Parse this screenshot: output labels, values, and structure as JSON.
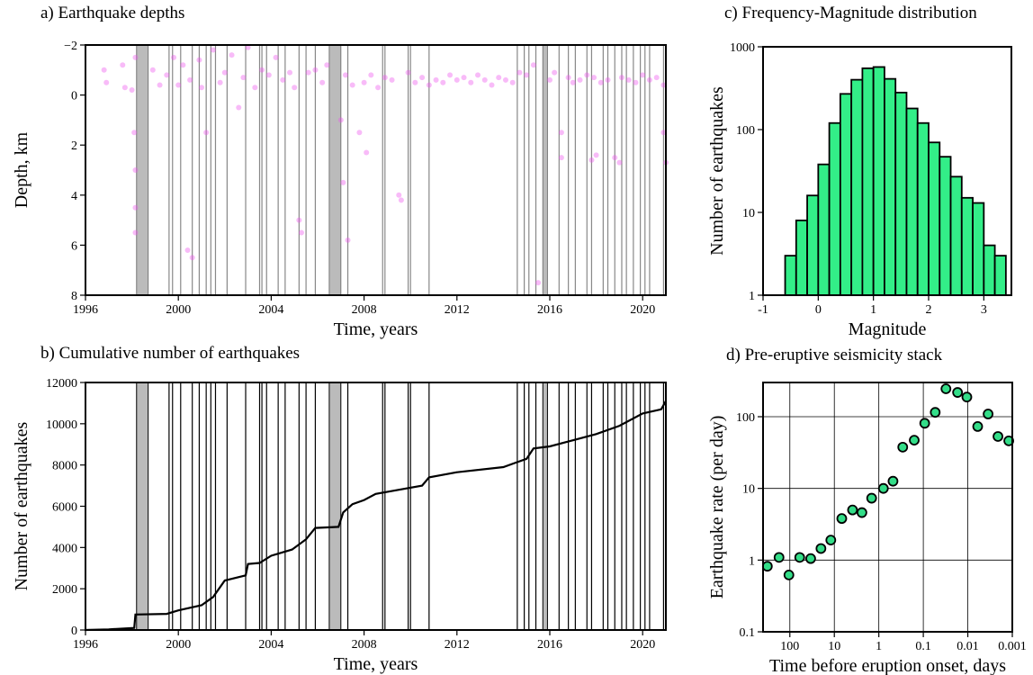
{
  "chart_data": [
    {
      "type": "scatter",
      "title": "a) Earthquake depths",
      "x_label": "Time, years",
      "y_label": "Depth, km",
      "color": "#ee55ee",
      "xlim": [
        1996,
        2021
      ],
      "xticks": [
        1996,
        2000,
        2004,
        2008,
        2012,
        2016,
        2020
      ],
      "ylim": [
        8,
        -2
      ],
      "yticks": [
        {
          "value": -2,
          "label": "−2"
        },
        0,
        2,
        4,
        6,
        8
      ],
      "eruption_periods": [
        [
          1998.2,
          1998.7
        ],
        [
          2006.5,
          2007.0
        ],
        [
          2015.7,
          2015.9
        ]
      ],
      "eruptions": [
        1999.6,
        1999.75,
        2000.1,
        2000.6,
        2000.9,
        2001.2,
        2001.4,
        2001.6,
        2002.1,
        2002.9,
        2003.5,
        2003.6,
        2003.8,
        2004.3,
        2004.6,
        2005.2,
        2005.5,
        2005.9,
        2007.3,
        2008.8,
        2008.9,
        2009.9,
        2010.0,
        2010.8,
        2014.6,
        2014.9,
        2015.1,
        2015.4,
        2016.4,
        2016.8,
        2017.1,
        2017.6,
        2017.8,
        2018.3,
        2018.5,
        2018.8,
        2019.1,
        2019.3,
        2019.6,
        2019.9,
        2020.1,
        2020.3,
        2020.9
      ],
      "x": [
        1996.8,
        1996.9,
        1997.6,
        1997.7,
        1998.0,
        1998.1,
        1998.15,
        1998.15,
        1998.15,
        1998.15,
        1998.9,
        1999.2,
        1999.5,
        1999.8,
        2000.0,
        2000.2,
        2000.4,
        2000.6,
        2000.5,
        2000.9,
        2001.0,
        2001.2,
        2001.5,
        2001.8,
        2002.0,
        2002.3,
        2002.6,
        2002.8,
        2003.0,
        2003.3,
        2003.6,
        2003.9,
        2004.2,
        2004.5,
        2004.8,
        2005.0,
        2005.2,
        2005.3,
        2005.6,
        2005.9,
        2006.2,
        2006.4,
        2007.1,
        2007.2,
        2007.3,
        2007.5,
        2007.8,
        2008.0,
        2008.3,
        2008.6,
        2008.9,
        2009.2,
        2009.5,
        2009.6,
        2009.9,
        2010.2,
        2010.5,
        2010.8,
        2011.1,
        2011.4,
        2011.7,
        2012.0,
        2012.3,
        2012.6,
        2012.9,
        2013.2,
        2013.5,
        2013.8,
        2014.1,
        2014.4,
        2014.7,
        2015.0,
        2015.3,
        2015.5,
        2016.0,
        2016.2,
        2016.5,
        2016.8,
        2017.0,
        2017.3,
        2017.6,
        2017.9,
        2018.2,
        2018.5,
        2018.8,
        2019.1,
        2019.4,
        2019.7,
        2020.0,
        2020.3,
        2020.6,
        2020.9,
        2020.9,
        2021.0,
        2007.0,
        2008.1,
        2016.5,
        2017.8,
        2018.0,
        2019.0
      ],
      "values": [
        -1.0,
        -0.5,
        -1.2,
        -0.3,
        -0.2,
        1.5,
        3.0,
        4.5,
        5.5,
        -1.5,
        -1.0,
        -0.4,
        -0.8,
        -1.5,
        -0.4,
        -1.2,
        6.2,
        6.5,
        -0.6,
        -1.4,
        -0.3,
        1.5,
        -1.8,
        -0.5,
        -0.9,
        -1.6,
        0.5,
        -0.7,
        -1.9,
        -0.3,
        -1.0,
        -0.8,
        -1.5,
        -0.6,
        -0.9,
        -0.3,
        5.0,
        5.5,
        -0.9,
        -1.0,
        -0.5,
        -1.2,
        3.5,
        -0.8,
        5.8,
        -0.4,
        1.5,
        -0.5,
        -0.8,
        -0.3,
        -0.7,
        -0.6,
        4.0,
        4.2,
        -0.9,
        -0.5,
        -0.7,
        -0.4,
        -0.6,
        -0.5,
        -0.8,
        -0.6,
        -0.7,
        -0.5,
        -0.8,
        -0.6,
        -0.4,
        -0.7,
        -0.6,
        -0.5,
        -0.9,
        -0.8,
        -1.2,
        7.5,
        -0.6,
        -0.9,
        1.5,
        -0.7,
        -0.5,
        -0.6,
        -0.8,
        -0.7,
        -0.5,
        -0.6,
        2.5,
        -0.7,
        -0.6,
        -0.5,
        -0.8,
        -0.6,
        -0.7,
        -0.4,
        1.5,
        2.7,
        1.0,
        2.3,
        2.5,
        2.6,
        2.4,
        2.7
      ]
    },
    {
      "type": "line",
      "title": "b) Cumulative number of earthquakes",
      "x_label": "Time, years",
      "y_label": "Number of earthquakes",
      "color": "#000000",
      "xlim": [
        1996,
        2021
      ],
      "xticks": [
        1996,
        2000,
        2004,
        2008,
        2012,
        2016,
        2020
      ],
      "ylim": [
        0,
        12000
      ],
      "yticks": [
        0,
        2000,
        4000,
        6000,
        8000,
        10000,
        12000
      ],
      "eruption_periods": [
        [
          1998.2,
          1998.7
        ],
        [
          2006.5,
          2007.0
        ],
        [
          2015.7,
          2015.9
        ]
      ],
      "eruptions": [
        1999.6,
        1999.75,
        2000.1,
        2000.6,
        2000.9,
        2001.2,
        2001.4,
        2001.6,
        2002.1,
        2002.9,
        2003.5,
        2003.6,
        2003.8,
        2004.3,
        2004.6,
        2005.2,
        2005.5,
        2005.9,
        2007.3,
        2008.8,
        2008.9,
        2009.9,
        2010.0,
        2010.8,
        2014.6,
        2014.9,
        2015.1,
        2015.4,
        2016.4,
        2016.8,
        2017.1,
        2017.6,
        2017.8,
        2018.3,
        2018.5,
        2018.8,
        2019.1,
        2019.3,
        2019.6,
        2019.9,
        2020.1,
        2020.3,
        2020.9
      ],
      "x": [
        1996.0,
        1997.0,
        1998.1,
        1998.15,
        1999.5,
        2000.0,
        2001.0,
        2001.5,
        2002.0,
        2002.9,
        2003.0,
        2003.5,
        2004.0,
        2004.9,
        2005.5,
        2005.9,
        2006.9,
        2007.1,
        2007.5,
        2008.0,
        2008.5,
        2009.5,
        2010.5,
        2010.8,
        2012.0,
        2014.0,
        2014.5,
        2015.0,
        2015.3,
        2016.0,
        2017.0,
        2018.0,
        2019.0,
        2020.0,
        2020.8,
        2021.0
      ],
      "values": [
        0,
        30,
        100,
        750,
        780,
        950,
        1200,
        1600,
        2400,
        2650,
        3200,
        3250,
        3600,
        3900,
        4400,
        4950,
        5000,
        5700,
        6100,
        6300,
        6600,
        6800,
        7000,
        7400,
        7650,
        7900,
        8100,
        8300,
        8800,
        8900,
        9200,
        9500,
        9900,
        10500,
        10700,
        11100
      ]
    },
    {
      "type": "histogram",
      "title": "c) Frequency-Magnitude distribution",
      "x_label": "Magnitude",
      "y_label": "Number of earthquakes",
      "color": "#33ee88",
      "xlim": [
        -1,
        3.5
      ],
      "xticks": [
        -1,
        0,
        1,
        2,
        3
      ],
      "ylim": [
        1,
        1000
      ],
      "yticks": [
        1,
        10,
        100,
        1000
      ],
      "log_y": true,
      "bins": [
        -0.6,
        -0.4,
        -0.2,
        0,
        0.2,
        0.4,
        0.6,
        0.8,
        1.0,
        1.2,
        1.4,
        1.6,
        1.8,
        2.0,
        2.2,
        2.4,
        2.6,
        2.8,
        3.0,
        3.2,
        3.4
      ],
      "values": [
        3,
        8,
        16,
        38,
        120,
        270,
        400,
        550,
        570,
        410,
        280,
        180,
        120,
        70,
        47,
        27,
        15,
        13,
        4,
        3
      ]
    },
    {
      "type": "scatter",
      "title": "d) Pre-eruptive seismicity stack",
      "x_label": "Time before eruption onset, days",
      "y_label": "Earthquake rate (per day)",
      "color": "#33dd88",
      "xlim": [
        400,
        0.001
      ],
      "xticks": [
        100,
        10,
        1,
        0.1,
        0.01,
        0.001
      ],
      "log_x": true,
      "ylim": [
        0.1,
        300
      ],
      "yticks": [
        0.1,
        1,
        10,
        100
      ],
      "log_y": true,
      "grid": true,
      "x": [
        320,
        175,
        105,
        60,
        34,
        20,
        12,
        6.8,
        3.9,
        2.4,
        1.45,
        0.79,
        0.48,
        0.29,
        0.16,
        0.093,
        0.054,
        0.031,
        0.017,
        0.0105,
        0.006,
        0.0035,
        0.0021,
        0.0012
      ],
      "values": [
        0.82,
        1.09,
        0.62,
        1.09,
        1.05,
        1.45,
        1.9,
        3.8,
        5.0,
        4.6,
        7.3,
        10,
        12.6,
        37.6,
        47,
        81,
        115,
        245,
        218,
        188,
        73,
        109,
        53,
        46
      ]
    }
  ]
}
